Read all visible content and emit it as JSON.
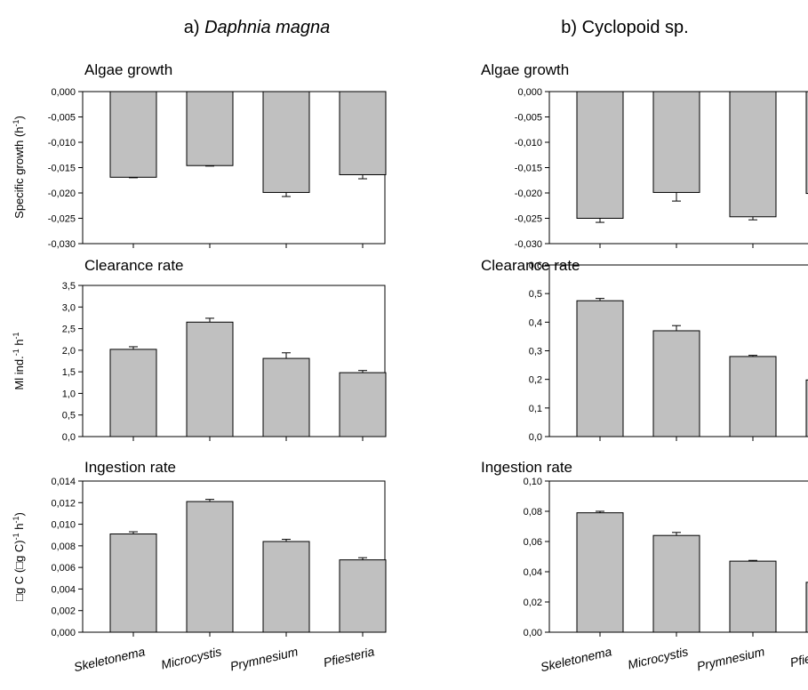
{
  "columns": [
    {
      "prefix": "a) ",
      "name": "Daphnia magna",
      "italic": true
    },
    {
      "prefix": "b) ",
      "name": "Cyclopoid sp.",
      "italic": false
    }
  ],
  "row_ylabels": [
    [
      "Specific growth (h",
      "-1",
      ")"
    ],
    [
      "Ml ind.",
      "-1",
      " h",
      "-1"
    ],
    [
      "□g C (□g C)",
      "-1",
      " h",
      "-1",
      ")"
    ]
  ],
  "colors": {
    "bar_fill": "#c0c0c0",
    "outline": "#000000"
  },
  "chart_data": [
    {
      "type": "bar",
      "title": "Algae growth",
      "categories": [
        "Skeletonema",
        "Microcystis",
        "Prymnesium",
        "Pfiesteria"
      ],
      "values": [
        -0.0169,
        -0.0146,
        -0.0199,
        -0.0164
      ],
      "errors": [
        0.0001,
        0.0001,
        0.0008,
        0.0008
      ],
      "ylim": [
        -0.03,
        0.0
      ],
      "yticks": [
        "0,000",
        "-0,005",
        "-0,010",
        "-0,015",
        "-0,020",
        "-0,025",
        "-0,030"
      ],
      "ytick_values": [
        0,
        -0.005,
        -0.01,
        -0.015,
        -0.02,
        -0.025,
        -0.03
      ],
      "ylabel": "Specific growth (h-1)"
    },
    {
      "type": "bar",
      "title": "Algae growth",
      "categories": [
        "Skeletonema",
        "Microcystis",
        "Prymnesium",
        "Pfiesteria"
      ],
      "values": [
        -0.025,
        -0.0199,
        -0.0247,
        -0.0201
      ],
      "errors": [
        0.0008,
        0.0017,
        0.0006,
        0.0011
      ],
      "ylim": [
        -0.03,
        0.0
      ],
      "yticks": [
        "0,000",
        "-0,005",
        "-0,010",
        "-0,015",
        "-0,020",
        "-0,025",
        "-0,030"
      ],
      "ytick_values": [
        0,
        -0.005,
        -0.01,
        -0.015,
        -0.02,
        -0.025,
        -0.03
      ],
      "ylabel": ""
    },
    {
      "type": "bar",
      "title": "Clearance rate",
      "categories": [
        "Skeletonema",
        "Microcystis",
        "Prymnesium",
        "Pfiesteria"
      ],
      "values": [
        2.02,
        2.65,
        1.81,
        1.48
      ],
      "errors": [
        0.06,
        0.09,
        0.13,
        0.05
      ],
      "ylim": [
        0,
        3.5
      ],
      "yticks": [
        "0,0",
        "0,5",
        "1,0",
        "1,5",
        "2,0",
        "2,5",
        "3,0",
        "3,5"
      ],
      "ytick_values": [
        0,
        0.5,
        1.0,
        1.5,
        2.0,
        2.5,
        3.0,
        3.5
      ],
      "ylabel": "Ml ind.-1 h-1"
    },
    {
      "type": "bar",
      "title": "Clearance rate",
      "categories": [
        "Skeletonema",
        "Microcystis",
        "Prymnesium",
        "Pfiesteria"
      ],
      "values": [
        0.475,
        0.37,
        0.28,
        0.198
      ],
      "errors": [
        0.008,
        0.018,
        0.004,
        0.008
      ],
      "ylim": [
        0,
        0.6
      ],
      "yticks": [
        "0,0",
        "0,1",
        "0,2",
        "0,3",
        "0,4",
        "0,5",
        "0,6"
      ],
      "ytick_values": [
        0,
        0.1,
        0.2,
        0.3,
        0.4,
        0.5,
        0.6
      ],
      "ylabel": ""
    },
    {
      "type": "bar",
      "title": "Ingestion rate",
      "categories": [
        "Skeletonema",
        "Microcystis",
        "Prymnesium",
        "Pfiesteria"
      ],
      "values": [
        0.0091,
        0.0121,
        0.0084,
        0.0067
      ],
      "errors": [
        0.0002,
        0.0002,
        0.0002,
        0.0002
      ],
      "ylim": [
        0,
        0.014
      ],
      "yticks": [
        "0,000",
        "0,002",
        "0,004",
        "0,006",
        "0,008",
        "0,010",
        "0,012",
        "0,014"
      ],
      "ytick_values": [
        0,
        0.002,
        0.004,
        0.006,
        0.008,
        0.01,
        0.012,
        0.014
      ],
      "ylabel": "□g C (□g C)-1 h-1)"
    },
    {
      "type": "bar",
      "title": "Ingestion rate",
      "categories": [
        "Skeletonema",
        "Microcystis",
        "Prymnesium",
        "Pfiesteria"
      ],
      "values": [
        0.079,
        0.064,
        0.047,
        0.033
      ],
      "errors": [
        0.001,
        0.002,
        0.0005,
        0.001
      ],
      "ylim": [
        0,
        0.1
      ],
      "yticks": [
        "0,00",
        "0,02",
        "0,04",
        "0,06",
        "0,08",
        "0,10"
      ],
      "ytick_values": [
        0,
        0.02,
        0.04,
        0.06,
        0.08,
        0.1
      ],
      "ylabel": ""
    }
  ]
}
